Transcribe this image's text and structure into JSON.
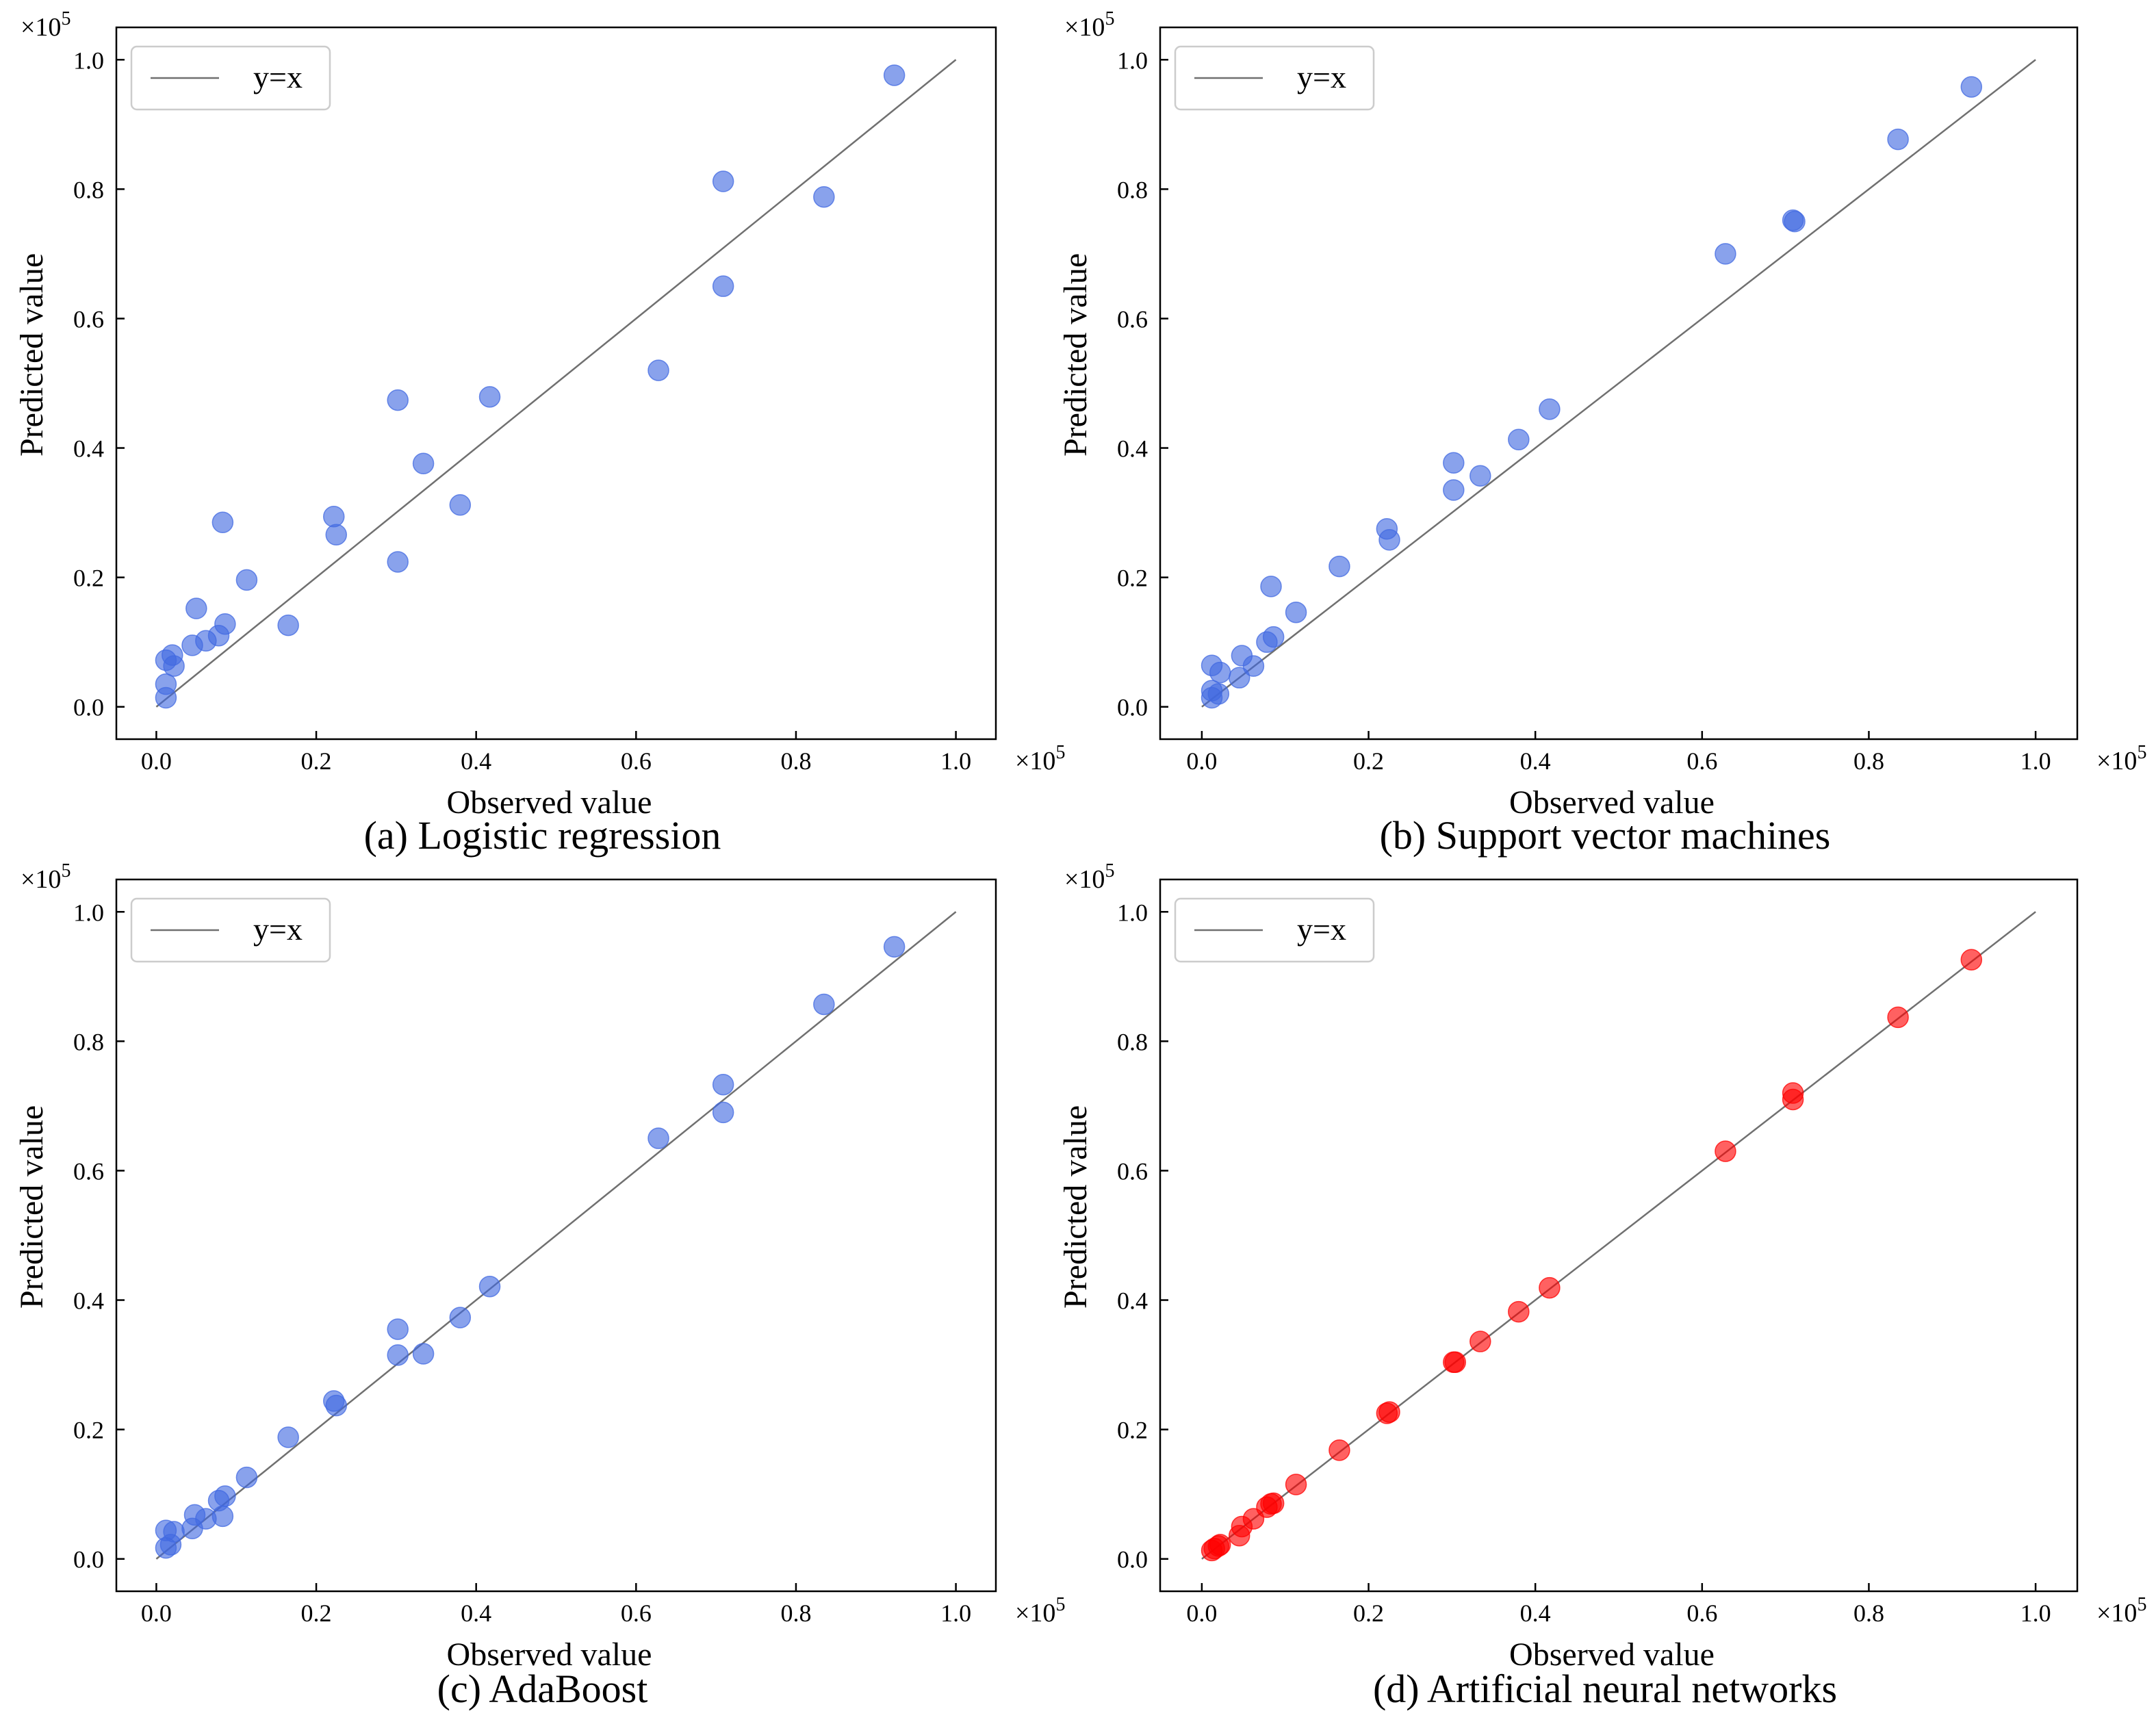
{
  "figure": {
    "colors": {
      "blue": "#4169E1",
      "red": "#FF0000",
      "line": "#707070",
      "axis": "#000000"
    },
    "multiplier_label": "×10",
    "multiplier_exponent": "5"
  },
  "chart_data": [
    {
      "type": "scatter",
      "caption": "(a) Logistic regression",
      "xlabel": "Observed value",
      "ylabel": "Predicted value",
      "xlim": [
        -0.05,
        1.05
      ],
      "ylim": [
        -0.05,
        1.05
      ],
      "xticks": [
        0.0,
        0.2,
        0.4,
        0.6,
        0.8,
        1.0
      ],
      "yticks": [
        0.0,
        0.2,
        0.4,
        0.6,
        0.8,
        1.0
      ],
      "x_tick_labels": [
        "0.0",
        "0.2",
        "0.4",
        "0.6",
        "0.8",
        "1.0"
      ],
      "y_tick_labels": [
        "0.0",
        "0.2",
        "0.4",
        "0.6",
        "0.8",
        "1.0"
      ],
      "legend": {
        "label": "y=x",
        "placement": "upper-left"
      },
      "point_color": "#4169E1",
      "points": [
        {
          "x": 0.012,
          "y": 0.014
        },
        {
          "x": 0.012,
          "y": 0.035
        },
        {
          "x": 0.012,
          "y": 0.072
        },
        {
          "x": 0.02,
          "y": 0.08
        },
        {
          "x": 0.022,
          "y": 0.063
        },
        {
          "x": 0.045,
          "y": 0.095
        },
        {
          "x": 0.05,
          "y": 0.152
        },
        {
          "x": 0.062,
          "y": 0.102
        },
        {
          "x": 0.078,
          "y": 0.11
        },
        {
          "x": 0.083,
          "y": 0.285
        },
        {
          "x": 0.086,
          "y": 0.128
        },
        {
          "x": 0.113,
          "y": 0.196
        },
        {
          "x": 0.165,
          "y": 0.126
        },
        {
          "x": 0.222,
          "y": 0.294
        },
        {
          "x": 0.225,
          "y": 0.266
        },
        {
          "x": 0.302,
          "y": 0.474
        },
        {
          "x": 0.302,
          "y": 0.224
        },
        {
          "x": 0.334,
          "y": 0.376
        },
        {
          "x": 0.38,
          "y": 0.312
        },
        {
          "x": 0.417,
          "y": 0.479
        },
        {
          "x": 0.628,
          "y": 0.52
        },
        {
          "x": 0.709,
          "y": 0.812
        },
        {
          "x": 0.709,
          "y": 0.65
        },
        {
          "x": 0.835,
          "y": 0.788
        },
        {
          "x": 0.923,
          "y": 0.976
        }
      ]
    },
    {
      "type": "scatter",
      "caption": "(b) Support vector machines",
      "xlabel": "Observed value",
      "ylabel": "Predicted value",
      "xlim": [
        -0.05,
        1.05
      ],
      "ylim": [
        -0.05,
        1.05
      ],
      "xticks": [
        0.0,
        0.2,
        0.4,
        0.6,
        0.8,
        1.0
      ],
      "yticks": [
        0.0,
        0.2,
        0.4,
        0.6,
        0.8,
        1.0
      ],
      "x_tick_labels": [
        "0.0",
        "0.2",
        "0.4",
        "0.6",
        "0.8",
        "1.0"
      ],
      "y_tick_labels": [
        "0.0",
        "0.2",
        "0.4",
        "0.6",
        "0.8",
        "1.0"
      ],
      "legend": {
        "label": "y=x",
        "placement": "upper-left"
      },
      "point_color": "#4169E1",
      "points": [
        {
          "x": 0.012,
          "y": 0.014
        },
        {
          "x": 0.012,
          "y": 0.025
        },
        {
          "x": 0.012,
          "y": 0.064
        },
        {
          "x": 0.02,
          "y": 0.02
        },
        {
          "x": 0.022,
          "y": 0.053
        },
        {
          "x": 0.045,
          "y": 0.045
        },
        {
          "x": 0.048,
          "y": 0.079
        },
        {
          "x": 0.062,
          "y": 0.063
        },
        {
          "x": 0.078,
          "y": 0.1
        },
        {
          "x": 0.083,
          "y": 0.186
        },
        {
          "x": 0.086,
          "y": 0.108
        },
        {
          "x": 0.113,
          "y": 0.146
        },
        {
          "x": 0.165,
          "y": 0.217
        },
        {
          "x": 0.222,
          "y": 0.275
        },
        {
          "x": 0.225,
          "y": 0.258
        },
        {
          "x": 0.302,
          "y": 0.377
        },
        {
          "x": 0.302,
          "y": 0.335
        },
        {
          "x": 0.334,
          "y": 0.357
        },
        {
          "x": 0.38,
          "y": 0.413
        },
        {
          "x": 0.417,
          "y": 0.46
        },
        {
          "x": 0.628,
          "y": 0.7
        },
        {
          "x": 0.709,
          "y": 0.752
        },
        {
          "x": 0.711,
          "y": 0.75
        },
        {
          "x": 0.835,
          "y": 0.877
        },
        {
          "x": 0.923,
          "y": 0.958
        }
      ]
    },
    {
      "type": "scatter",
      "caption": "(c) AdaBoost",
      "xlabel": "Observed value",
      "ylabel": "Predicted value",
      "xlim": [
        -0.05,
        1.05
      ],
      "ylim": [
        -0.05,
        1.05
      ],
      "xticks": [
        0.0,
        0.2,
        0.4,
        0.6,
        0.8,
        1.0
      ],
      "yticks": [
        0.0,
        0.2,
        0.4,
        0.6,
        0.8,
        1.0
      ],
      "x_tick_labels": [
        "0.0",
        "0.2",
        "0.4",
        "0.6",
        "0.8",
        "1.0"
      ],
      "y_tick_labels": [
        "0.0",
        "0.2",
        "0.4",
        "0.6",
        "0.8",
        "1.0"
      ],
      "legend": {
        "label": "y=x",
        "placement": "upper-left"
      },
      "point_color": "#4169E1",
      "points": [
        {
          "x": 0.012,
          "y": 0.017
        },
        {
          "x": 0.012,
          "y": 0.044
        },
        {
          "x": 0.018,
          "y": 0.022
        },
        {
          "x": 0.022,
          "y": 0.042
        },
        {
          "x": 0.045,
          "y": 0.047
        },
        {
          "x": 0.048,
          "y": 0.068
        },
        {
          "x": 0.062,
          "y": 0.062
        },
        {
          "x": 0.078,
          "y": 0.09
        },
        {
          "x": 0.083,
          "y": 0.066
        },
        {
          "x": 0.086,
          "y": 0.097
        },
        {
          "x": 0.113,
          "y": 0.126
        },
        {
          "x": 0.165,
          "y": 0.188
        },
        {
          "x": 0.222,
          "y": 0.244
        },
        {
          "x": 0.225,
          "y": 0.237
        },
        {
          "x": 0.302,
          "y": 0.355
        },
        {
          "x": 0.302,
          "y": 0.315
        },
        {
          "x": 0.334,
          "y": 0.317
        },
        {
          "x": 0.38,
          "y": 0.373
        },
        {
          "x": 0.417,
          "y": 0.421
        },
        {
          "x": 0.628,
          "y": 0.65
        },
        {
          "x": 0.709,
          "y": 0.733
        },
        {
          "x": 0.709,
          "y": 0.69
        },
        {
          "x": 0.835,
          "y": 0.857
        },
        {
          "x": 0.923,
          "y": 0.946
        }
      ]
    },
    {
      "type": "scatter",
      "caption": "(d) Artificial neural networks",
      "xlabel": "Observed value",
      "ylabel": "Predicted value",
      "xlim": [
        -0.05,
        1.05
      ],
      "ylim": [
        -0.05,
        1.05
      ],
      "xticks": [
        0.0,
        0.2,
        0.4,
        0.6,
        0.8,
        1.0
      ],
      "yticks": [
        0.0,
        0.2,
        0.4,
        0.6,
        0.8,
        1.0
      ],
      "x_tick_labels": [
        "0.0",
        "0.2",
        "0.4",
        "0.6",
        "0.8",
        "1.0"
      ],
      "y_tick_labels": [
        "0.0",
        "0.2",
        "0.4",
        "0.6",
        "0.8",
        "1.0"
      ],
      "legend": {
        "label": "y=x",
        "placement": "upper-left"
      },
      "point_color": "#FF0000",
      "points": [
        {
          "x": 0.012,
          "y": 0.013
        },
        {
          "x": 0.015,
          "y": 0.016
        },
        {
          "x": 0.02,
          "y": 0.02
        },
        {
          "x": 0.022,
          "y": 0.022
        },
        {
          "x": 0.045,
          "y": 0.036
        },
        {
          "x": 0.048,
          "y": 0.05
        },
        {
          "x": 0.062,
          "y": 0.062
        },
        {
          "x": 0.078,
          "y": 0.08
        },
        {
          "x": 0.083,
          "y": 0.085
        },
        {
          "x": 0.086,
          "y": 0.086
        },
        {
          "x": 0.113,
          "y": 0.115
        },
        {
          "x": 0.165,
          "y": 0.168
        },
        {
          "x": 0.222,
          "y": 0.225
        },
        {
          "x": 0.225,
          "y": 0.227
        },
        {
          "x": 0.302,
          "y": 0.304
        },
        {
          "x": 0.304,
          "y": 0.304
        },
        {
          "x": 0.334,
          "y": 0.336
        },
        {
          "x": 0.38,
          "y": 0.382
        },
        {
          "x": 0.417,
          "y": 0.419
        },
        {
          "x": 0.628,
          "y": 0.63
        },
        {
          "x": 0.709,
          "y": 0.72
        },
        {
          "x": 0.709,
          "y": 0.71
        },
        {
          "x": 0.835,
          "y": 0.837
        },
        {
          "x": 0.923,
          "y": 0.926
        }
      ]
    }
  ]
}
